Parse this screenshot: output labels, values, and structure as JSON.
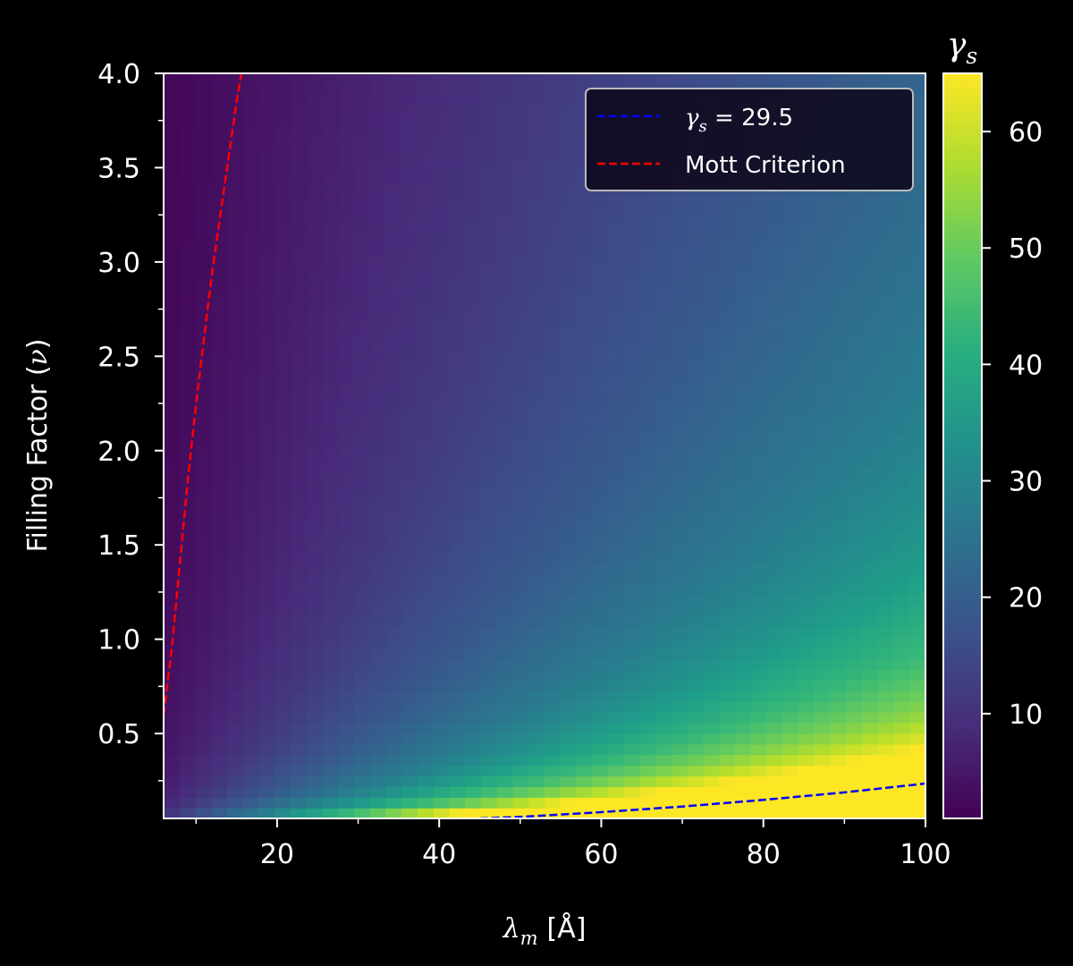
{
  "chart_data": {
    "type": "heatmap",
    "xlabel": {
      "symbol": "λ",
      "sub": "m",
      "unit": "[Å]"
    },
    "ylabel": {
      "text": "Filling Factor (",
      "symbol": "ν",
      "close": ")"
    },
    "xlim": [
      6,
      100
    ],
    "ylim": [
      0.05,
      4.0
    ],
    "x_ticks": [
      20,
      40,
      60,
      80,
      100
    ],
    "x_tick_labels": [
      "20",
      "40",
      "60",
      "80",
      "100"
    ],
    "y_ticks": [
      0.5,
      1.0,
      1.5,
      2.0,
      2.5,
      3.0,
      3.5,
      4.0
    ],
    "y_tick_labels": [
      "0.5",
      "1.0",
      "1.5",
      "2.0",
      "2.5",
      "3.0",
      "3.5",
      "4.0"
    ],
    "colorbar": {
      "title_symbol": "γ",
      "title_sub": "s",
      "colormap": "viridis",
      "range": [
        1,
        65
      ],
      "ticks": [
        10,
        20,
        30,
        40,
        50,
        60
      ],
      "tick_labels": [
        "10",
        "20",
        "30",
        "40",
        "50",
        "60"
      ]
    },
    "series": [
      {
        "name": "γs = 29.5",
        "legend_symbol": "γ",
        "legend_sub": "s",
        "legend_rest": " = 29.5",
        "style": "dashed",
        "color": "#0000ff",
        "x": [
          45,
          50,
          60,
          70,
          80,
          90,
          100
        ],
        "y": [
          0.05,
          0.058,
          0.083,
          0.113,
          0.148,
          0.188,
          0.235
        ]
      },
      {
        "name": "Mott Criterion",
        "legend_text": "Mott Criterion",
        "style": "dashed",
        "color": "#ff0000",
        "x": [
          6,
          7,
          8,
          9,
          10,
          11,
          12,
          13,
          14,
          15,
          15.6
        ],
        "y": [
          0.6,
          0.95,
          1.4,
          1.85,
          2.25,
          2.6,
          2.95,
          3.25,
          3.55,
          3.85,
          4.0
        ]
      }
    ],
    "legend_position": "top-right",
    "grid": false
  }
}
